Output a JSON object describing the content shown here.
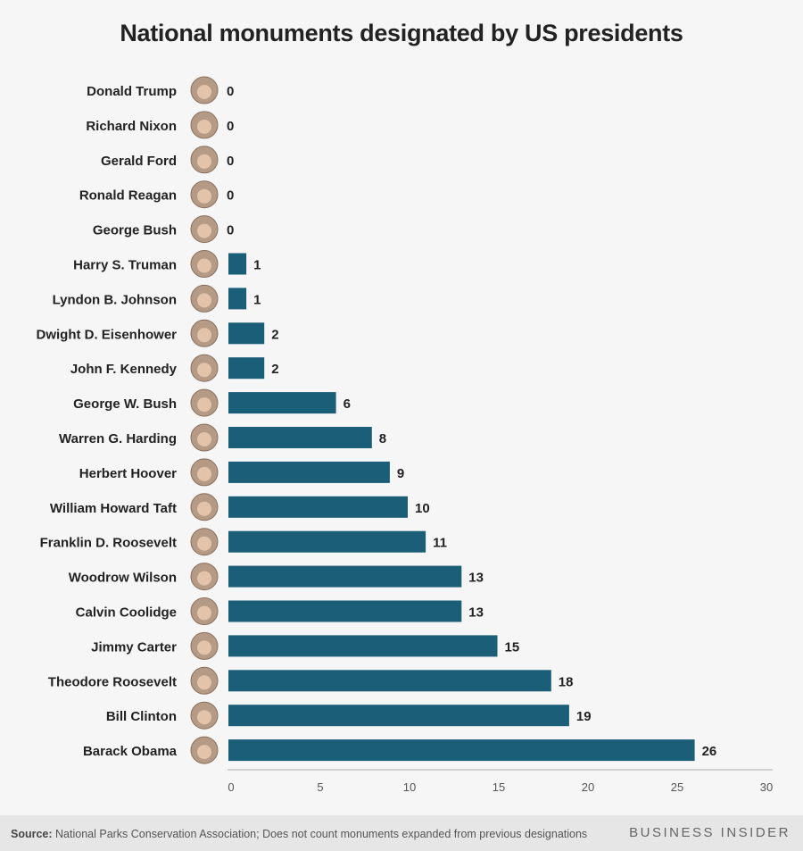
{
  "chart_data": {
    "type": "bar",
    "orientation": "horizontal",
    "title": "National monuments designated by US presidents",
    "categories": [
      "Donald Trump",
      "Richard Nixon",
      "Gerald Ford",
      "Ronald Reagan",
      "George Bush",
      "Harry S. Truman",
      "Lyndon B. Johnson",
      "Dwight D. Eisenhower",
      "John F. Kennedy",
      "George W. Bush",
      "Warren G. Harding",
      "Herbert Hoover",
      "William Howard Taft",
      "Franklin D. Roosevelt",
      "Woodrow Wilson",
      "Calvin Coolidge",
      "Jimmy Carter",
      "Theodore Roosevelt",
      "Bill Clinton",
      "Barack Obama"
    ],
    "values": [
      0,
      0,
      0,
      0,
      0,
      1,
      1,
      2,
      2,
      6,
      8,
      9,
      10,
      11,
      13,
      13,
      15,
      18,
      19,
      26
    ],
    "xlim": [
      0,
      30
    ],
    "xticks": [
      "0",
      "5",
      "10",
      "15",
      "20",
      "25",
      "30"
    ],
    "grid": false,
    "bar_color": "#1b5e78",
    "data_labels": true
  },
  "footer": {
    "source_label": "Source:",
    "source_text": " National Parks Conservation Association; Does not count monuments expanded from previous designations",
    "brand": "BUSINESS INSIDER"
  }
}
